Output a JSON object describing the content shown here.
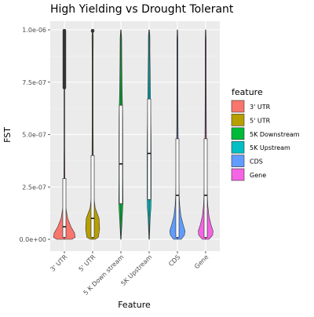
{
  "chart_data": {
    "type": "violin",
    "title": "High Yielding vs Drought Tolerant",
    "xlabel": "Feature",
    "ylabel": "FST",
    "ylim": [
      0,
      1e-06
    ],
    "y_ticks": [
      {
        "value": 0,
        "label": "0.0e+00"
      },
      {
        "value": 2.5e-07,
        "label": "2.5e-07"
      },
      {
        "value": 5e-07,
        "label": "5.0e-07"
      },
      {
        "value": 7.5e-07,
        "label": "7.5e-07"
      },
      {
        "value": 1e-06,
        "label": "1.0e-06"
      }
    ],
    "categories": [
      "3' UTR",
      "5' UTR",
      "5K Downstream",
      "5K Upstream",
      "CDS",
      "Gene"
    ],
    "x_tick_labels": [
      "3' UTR",
      "5' UTR",
      "5 K Down stream",
      "5K Upstream",
      "CDS",
      "Gene"
    ],
    "legend": {
      "title": "feature",
      "position": "right",
      "entries": [
        {
          "label": "3' UTR",
          "color": "#F8766D"
        },
        {
          "label": "5' UTR",
          "color": "#B79F00"
        },
        {
          "label": "5K Downstream",
          "color": "#00BA38"
        },
        {
          "label": "5K Upstream",
          "color": "#00BFC4"
        },
        {
          "label": "CDS",
          "color": "#619CFF"
        },
        {
          "label": "Gene",
          "color": "#F564E3"
        }
      ]
    },
    "grid": true,
    "series": [
      {
        "name": "3' UTR",
        "color": "#F8766D",
        "box": {
          "q1": 1e-08,
          "median": 6e-08,
          "q3": 2.9e-07,
          "whisker_low": 0,
          "whisker_high": 7.2e-07
        },
        "outliers_from": 7.2e-07,
        "outliers_to": 1e-06,
        "density": [
          [
            0,
            0.6
          ],
          [
            1e-08,
            0.85
          ],
          [
            3e-08,
            0.8
          ],
          [
            6e-08,
            0.52
          ],
          [
            1e-07,
            0.26
          ],
          [
            1.5e-07,
            0.12
          ],
          [
            2e-07,
            0.06
          ],
          [
            3e-07,
            0.04
          ],
          [
            4.5e-07,
            0.03
          ],
          [
            6e-07,
            0.03
          ],
          [
            8e-07,
            0.03
          ],
          [
            9.6e-07,
            0.04
          ],
          [
            1e-06,
            0.02
          ]
        ]
      },
      {
        "name": "5' UTR",
        "color": "#B79F00",
        "box": {
          "q1": 1e-08,
          "median": 1e-07,
          "q3": 4e-07,
          "whisker_low": 0,
          "whisker_high": 9.9e-07
        },
        "outliers_from": 9.9e-07,
        "outliers_to": 1e-06,
        "density": [
          [
            0,
            0.2
          ],
          [
            1e-08,
            0.45
          ],
          [
            5e-08,
            0.55
          ],
          [
            1e-07,
            0.5
          ],
          [
            1.5e-07,
            0.2
          ],
          [
            2e-07,
            0.1
          ],
          [
            3e-07,
            0.06
          ],
          [
            4e-07,
            0.05
          ],
          [
            5.5e-07,
            0.04
          ],
          [
            7e-07,
            0.04
          ],
          [
            8.5e-07,
            0.04
          ],
          [
            9.7e-07,
            0.05
          ],
          [
            1e-06,
            0.02
          ]
        ]
      },
      {
        "name": "5K Downstream",
        "color": "#00BA38",
        "box": {
          "q1": 1.7e-07,
          "median": 3.6e-07,
          "q3": 6.4e-07,
          "whisker_low": 0,
          "whisker_high": 1e-06
        },
        "outliers_from": null,
        "outliers_to": null,
        "density": [
          [
            0,
            0.02
          ],
          [
            5e-08,
            0.06
          ],
          [
            1.2e-07,
            0.12
          ],
          [
            1.8e-07,
            0.17
          ],
          [
            2.4e-07,
            0.16
          ],
          [
            3e-07,
            0.15
          ],
          [
            4e-07,
            0.15
          ],
          [
            5e-07,
            0.15
          ],
          [
            6e-07,
            0.14
          ],
          [
            7e-07,
            0.1
          ],
          [
            8.5e-07,
            0.07
          ],
          [
            9.6e-07,
            0.06
          ],
          [
            1e-06,
            0.02
          ]
        ]
      },
      {
        "name": "5K Upstream",
        "color": "#00BFC4",
        "box": {
          "q1": 1.9e-07,
          "median": 4.1e-07,
          "q3": 6.7e-07,
          "whisker_low": 0,
          "whisker_high": 1e-06
        },
        "outliers_from": null,
        "outliers_to": null,
        "density": [
          [
            0,
            0.02
          ],
          [
            5e-08,
            0.05
          ],
          [
            1e-07,
            0.08
          ],
          [
            1.5e-07,
            0.14
          ],
          [
            2e-07,
            0.16
          ],
          [
            3e-07,
            0.16
          ],
          [
            4e-07,
            0.16
          ],
          [
            5e-07,
            0.15
          ],
          [
            6e-07,
            0.12
          ],
          [
            7.5e-07,
            0.09
          ],
          [
            9e-07,
            0.06
          ],
          [
            9.7e-07,
            0.06
          ],
          [
            1e-06,
            0.02
          ]
        ]
      },
      {
        "name": "CDS",
        "color": "#619CFF",
        "box": {
          "q1": 1e-08,
          "median": 2.1e-07,
          "q3": 4.8e-07,
          "whisker_low": 0,
          "whisker_high": 1e-06
        },
        "outliers_from": null,
        "outliers_to": null,
        "density": [
          [
            0,
            0.3
          ],
          [
            2e-08,
            0.55
          ],
          [
            4e-08,
            0.6
          ],
          [
            7e-08,
            0.45
          ],
          [
            1.1e-07,
            0.28
          ],
          [
            1.6e-07,
            0.18
          ],
          [
            2.2e-07,
            0.13
          ],
          [
            3e-07,
            0.09
          ],
          [
            4e-07,
            0.07
          ],
          [
            5.5e-07,
            0.05
          ],
          [
            7.5e-07,
            0.04
          ],
          [
            9.5e-07,
            0.04
          ],
          [
            1e-06,
            0.02
          ]
        ]
      },
      {
        "name": "Gene",
        "color": "#F564E3",
        "box": {
          "q1": 1e-08,
          "median": 2.1e-07,
          "q3": 4.8e-07,
          "whisker_low": 0,
          "whisker_high": 1e-06
        },
        "outliers_from": null,
        "outliers_to": null,
        "density": [
          [
            0,
            0.25
          ],
          [
            2e-08,
            0.55
          ],
          [
            4e-08,
            0.58
          ],
          [
            7e-08,
            0.42
          ],
          [
            1.1e-07,
            0.26
          ],
          [
            1.6e-07,
            0.17
          ],
          [
            2.2e-07,
            0.12
          ],
          [
            3e-07,
            0.09
          ],
          [
            4e-07,
            0.07
          ],
          [
            5.5e-07,
            0.05
          ],
          [
            7.5e-07,
            0.04
          ],
          [
            9.5e-07,
            0.04
          ],
          [
            1e-06,
            0.02
          ]
        ]
      }
    ]
  }
}
